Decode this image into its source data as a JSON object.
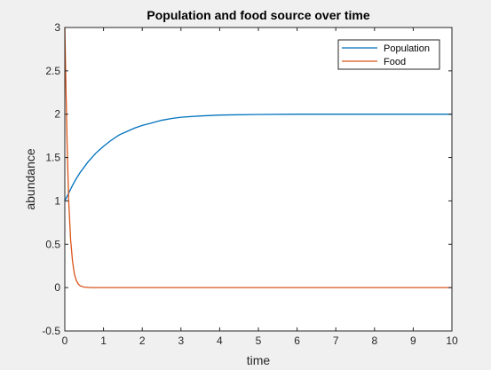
{
  "chart_data": {
    "type": "line",
    "title": "Population and food source over time",
    "xlabel": "time",
    "ylabel": "abundance",
    "xlim": [
      0,
      10
    ],
    "ylim": [
      -0.5,
      3
    ],
    "xticks": [
      "0",
      "1",
      "2",
      "3",
      "4",
      "5",
      "6",
      "7",
      "8",
      "9",
      "10"
    ],
    "yticks": [
      "-0.5",
      "0",
      "0.5",
      "1",
      "1.5",
      "2",
      "2.5",
      "3"
    ],
    "grid": false,
    "legend_position": "top-right",
    "series": [
      {
        "name": "Population",
        "color": "#0072bd",
        "points": [
          [
            0,
            1.0
          ],
          [
            0.1,
            1.09
          ],
          [
            0.2,
            1.18
          ],
          [
            0.3,
            1.26
          ],
          [
            0.4,
            1.33
          ],
          [
            0.5,
            1.39
          ],
          [
            0.6,
            1.45
          ],
          [
            0.7,
            1.5
          ],
          [
            0.8,
            1.55
          ],
          [
            0.9,
            1.59
          ],
          [
            1.0,
            1.63
          ],
          [
            1.2,
            1.7
          ],
          [
            1.4,
            1.76
          ],
          [
            1.6,
            1.8
          ],
          [
            1.8,
            1.84
          ],
          [
            2.0,
            1.87
          ],
          [
            2.25,
            1.9
          ],
          [
            2.5,
            1.93
          ],
          [
            2.75,
            1.95
          ],
          [
            3.0,
            1.965
          ],
          [
            3.5,
            1.98
          ],
          [
            4.0,
            1.99
          ],
          [
            5.0,
            1.997
          ],
          [
            6.0,
            2.0
          ],
          [
            7.0,
            2.0
          ],
          [
            8.0,
            2.0
          ],
          [
            9.0,
            2.0
          ],
          [
            10.0,
            2.0
          ]
        ]
      },
      {
        "name": "Food",
        "color": "#d95319",
        "points": [
          [
            0,
            3.0
          ],
          [
            0.03,
            2.3
          ],
          [
            0.06,
            1.65
          ],
          [
            0.1,
            1.0
          ],
          [
            0.15,
            0.55
          ],
          [
            0.2,
            0.3
          ],
          [
            0.25,
            0.15
          ],
          [
            0.3,
            0.08
          ],
          [
            0.35,
            0.04
          ],
          [
            0.4,
            0.02
          ],
          [
            0.5,
            0.005
          ],
          [
            0.7,
            0.0
          ],
          [
            1.0,
            0.0
          ],
          [
            2.0,
            0.0
          ],
          [
            3.0,
            0.0
          ],
          [
            4.0,
            0.0
          ],
          [
            5.0,
            0.0
          ],
          [
            6.0,
            0.0
          ],
          [
            7.0,
            0.0
          ],
          [
            8.0,
            0.0
          ],
          [
            9.0,
            0.0
          ],
          [
            10.0,
            0.0
          ]
        ]
      }
    ]
  }
}
